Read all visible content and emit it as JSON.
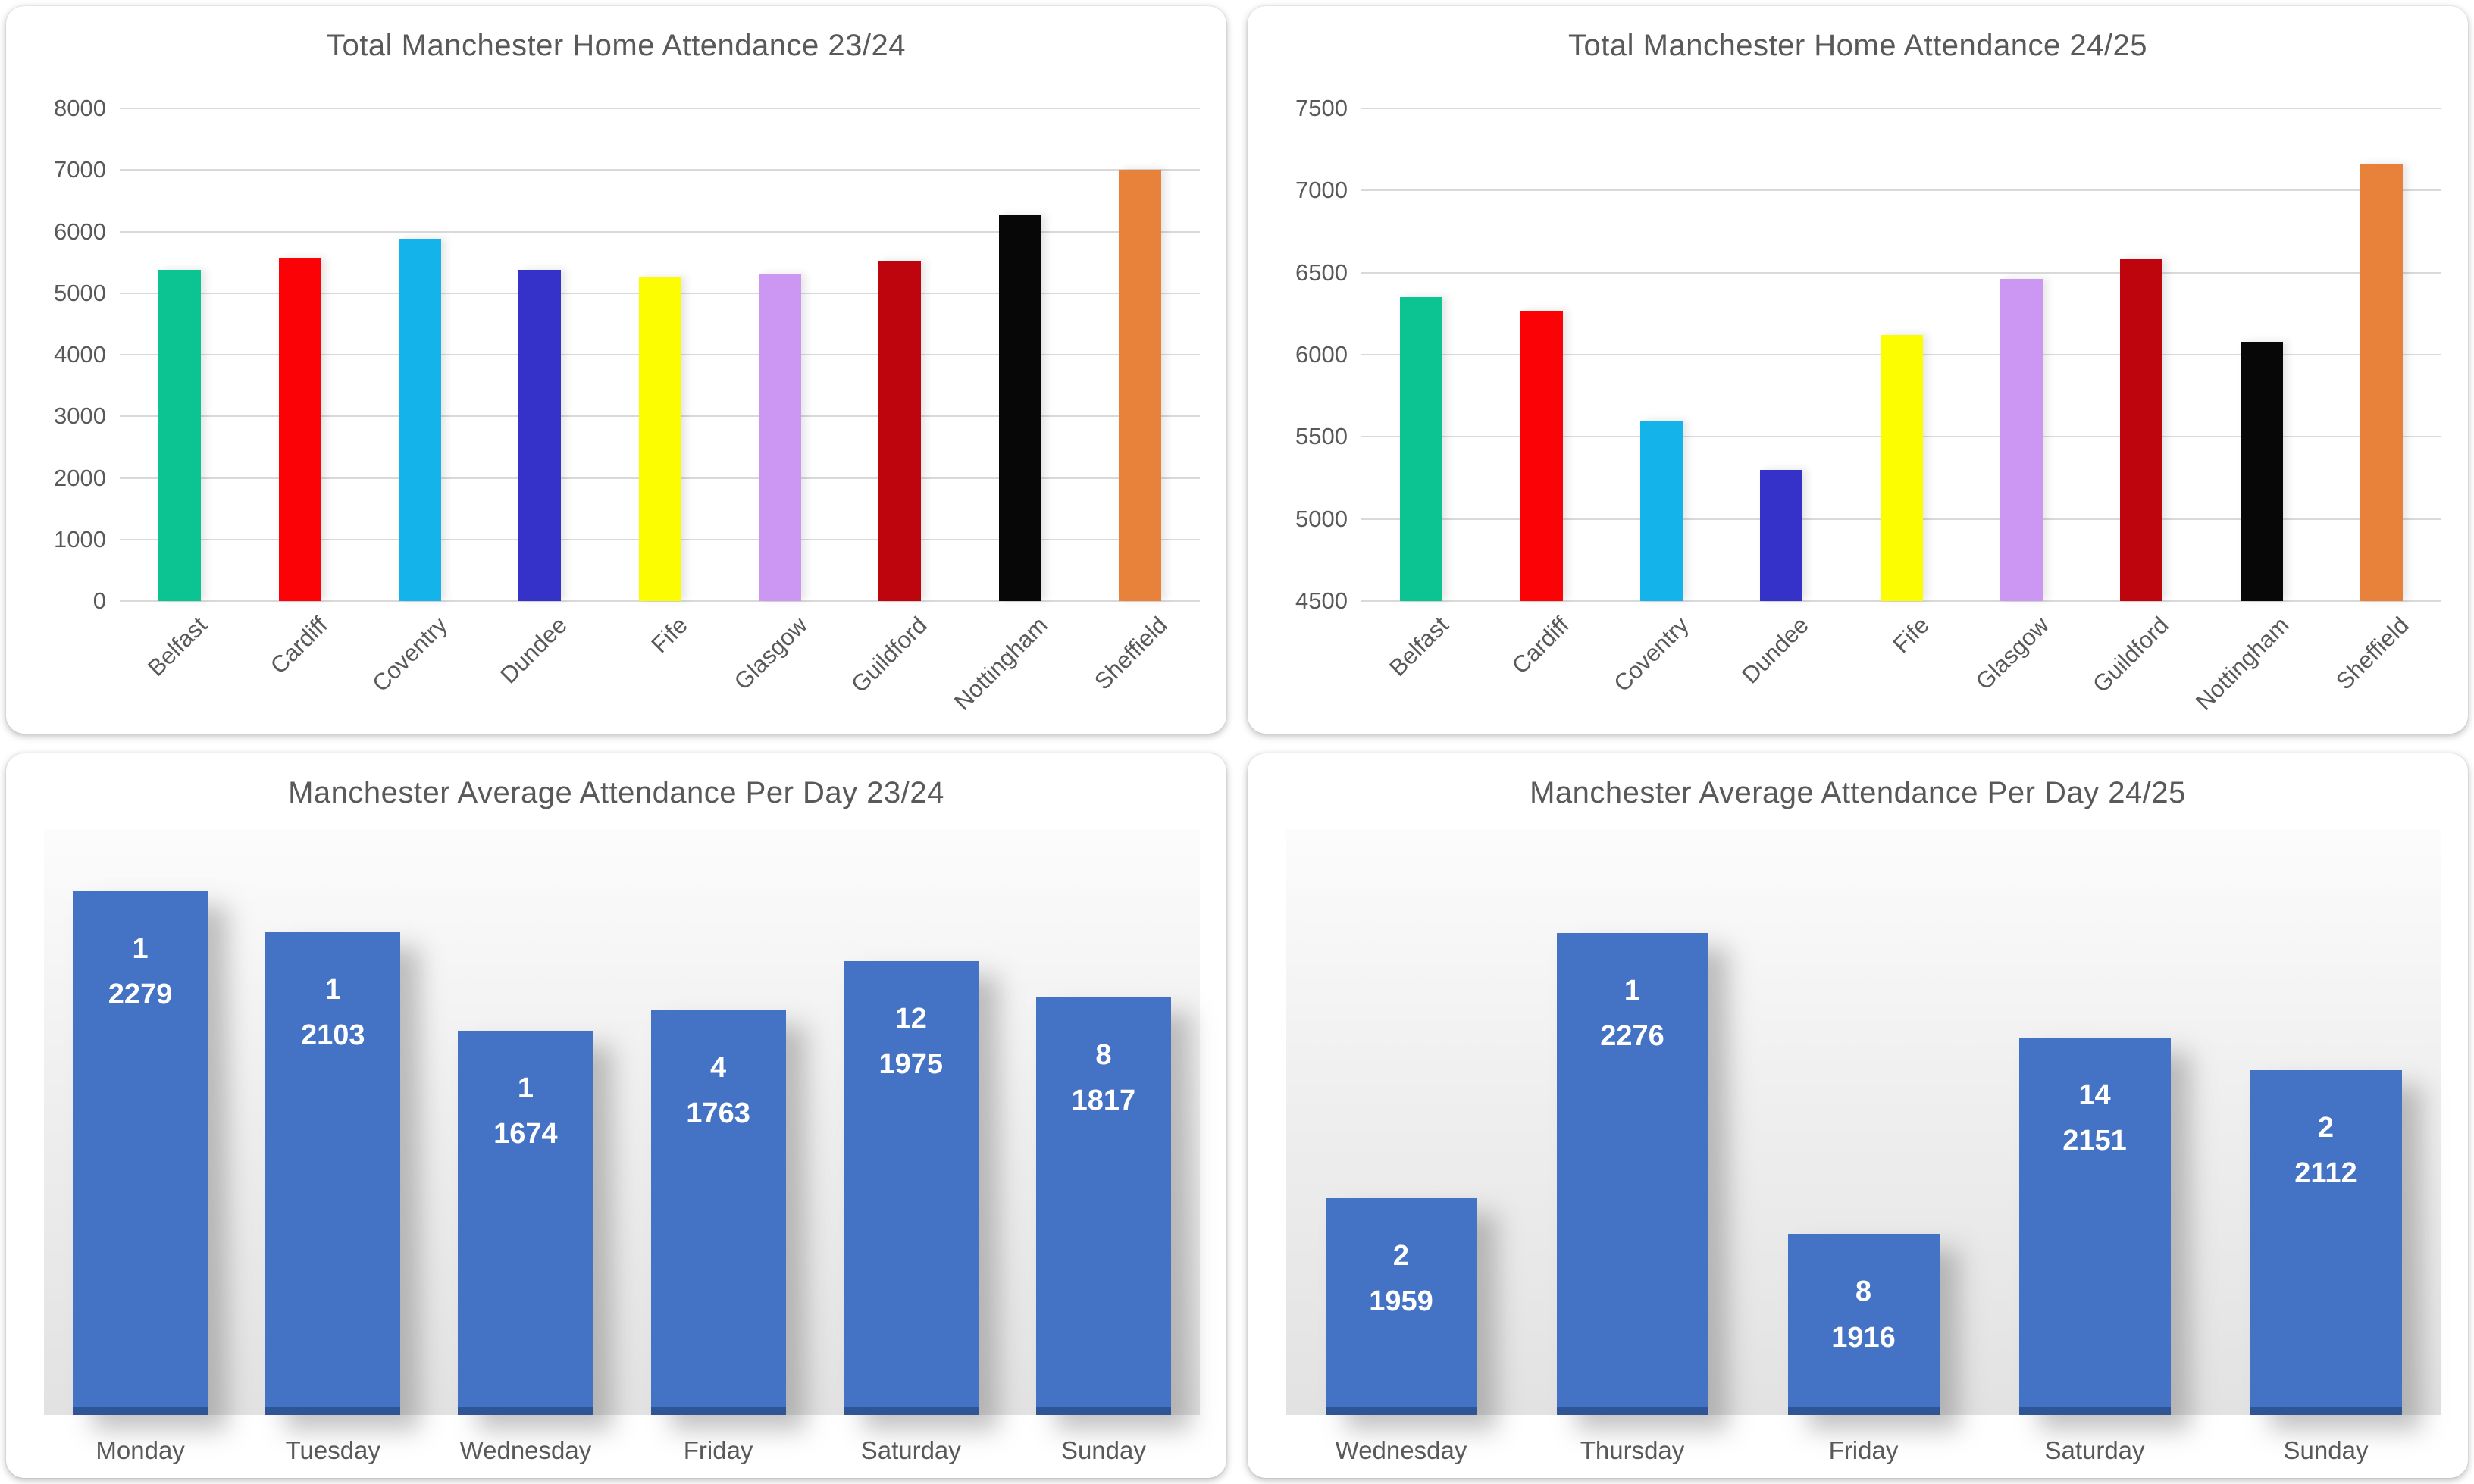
{
  "page": {
    "background": "#FFFFFF"
  },
  "chart_data": [
    {
      "id": "total-home-attendance-23-24",
      "type": "bar",
      "title": "Total Manchester Home Attendance 23/24",
      "categories": [
        "Belfast",
        "Cardiff",
        "Coventry",
        "Dundee",
        "Fife",
        "Glasgow",
        "Guildford",
        "Nottingham",
        "Sheffield"
      ],
      "values": [
        5380,
        5560,
        5880,
        5380,
        5250,
        5300,
        5530,
        6260,
        7000
      ],
      "bar_colors": [
        "#0BC492",
        "#FB0207",
        "#14B3E9",
        "#3432C9",
        "#FDFD02",
        "#CB97F3",
        "#BE040C",
        "#070707",
        "#E8813A"
      ],
      "xlabel": "",
      "ylabel": "",
      "ylim": [
        0,
        8000
      ],
      "ystep": 1000,
      "grid": true,
      "legend": "none",
      "xlabel_rotation_deg": 45,
      "axis_text_color": "#595959",
      "gridline_color": "#D9D9D9"
    },
    {
      "id": "total-home-attendance-24-25",
      "type": "bar",
      "title": "Total Manchester Home Attendance 24/25",
      "categories": [
        "Belfast",
        "Cardiff",
        "Coventry",
        "Dundee",
        "Fife",
        "Glasgow",
        "Guildford",
        "Nottingham",
        "Sheffield"
      ],
      "values": [
        6350,
        6270,
        5600,
        5300,
        6120,
        6460,
        6580,
        6080,
        7160
      ],
      "bar_colors": [
        "#0BC492",
        "#FB0207",
        "#14B3E9",
        "#3432C9",
        "#FDFD02",
        "#CB97F3",
        "#BE040C",
        "#070707",
        "#E8813A"
      ],
      "xlabel": "",
      "ylabel": "",
      "ylim": [
        4500,
        7500
      ],
      "ystep": 500,
      "grid": true,
      "legend": "none",
      "xlabel_rotation_deg": 45,
      "axis_text_color": "#595959",
      "gridline_color": "#D9D9D9"
    },
    {
      "id": "average-attendance-per-day-23-24",
      "type": "bar",
      "title": "Manchester Average Attendance Per Day 23/24",
      "categories": [
        "Monday",
        "Tuesday",
        "Wednesday",
        "Friday",
        "Saturday",
        "Sunday"
      ],
      "values": [
        2279,
        2103,
        1674,
        1763,
        1975,
        1817
      ],
      "count_labels": [
        "1",
        "1",
        "1",
        "4",
        "12",
        "8"
      ],
      "bar_color": "#4472C4",
      "bar_bottom_color": "#2F5597",
      "value_label_color": "#FFFFFF",
      "value_label_position": "inside-top",
      "ylim": [
        0,
        2550
      ],
      "grid": false,
      "legend": "none",
      "plot_background": "gray-gradient"
    },
    {
      "id": "average-attendance-per-day-24-25",
      "type": "bar",
      "title": "Manchester Average Attendance Per Day 24/25",
      "categories": [
        "Wednesday",
        "Thursday",
        "Friday",
        "Saturday",
        "Sunday"
      ],
      "values": [
        1959,
        2276,
        1916,
        2151,
        2112
      ],
      "count_labels": [
        "2",
        "1",
        "8",
        "14",
        "2"
      ],
      "bar_color": "#4472C4",
      "bar_bottom_color": "#2F5597",
      "value_label_color": "#FFFFFF",
      "value_label_position": "inside-top",
      "ylim": [
        1700,
        2400
      ],
      "grid": false,
      "legend": "none",
      "plot_background": "gray-gradient"
    }
  ]
}
